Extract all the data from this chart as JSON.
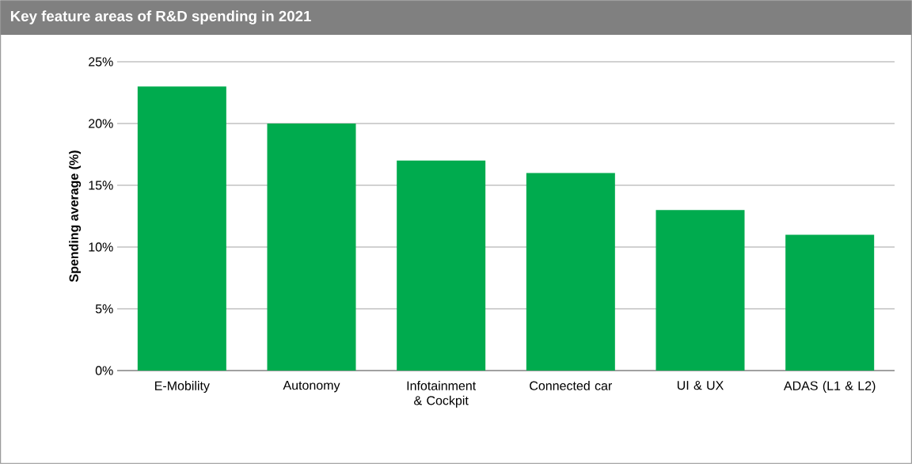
{
  "chart_data": {
    "type": "bar",
    "title": "Key feature areas of R&D spending in 2021",
    "ylabel": "Spending average (%)",
    "categories": [
      "E-Mobility",
      "Autonomy",
      "Infotainment & Cockpit",
      "Connected car",
      "UI &  UX",
      "ADAS (L1 & L2)"
    ],
    "values": [
      23,
      20,
      17,
      16,
      13,
      11
    ],
    "color": "#00ab4e",
    "ylim": [
      0,
      25
    ],
    "yticks": [
      {
        "value": 0,
        "label": "0%"
      },
      {
        "value": 5,
        "label": "5%"
      },
      {
        "value": 10,
        "label": "10%"
      },
      {
        "value": 15,
        "label": "15%"
      },
      {
        "value": 20,
        "label": "20%"
      },
      {
        "value": 25,
        "label": "25%"
      }
    ],
    "grid": "y"
  }
}
